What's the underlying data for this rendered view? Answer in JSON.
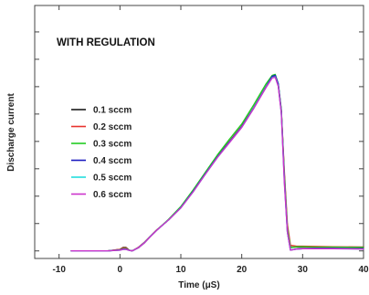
{
  "chart_data": {
    "type": "line",
    "title": "",
    "annotation": "WITH REGULATION",
    "xlabel": "Time (μS)",
    "ylabel": "Discharge current",
    "xlim": [
      -14,
      40
    ],
    "ylim": [
      -0.04,
      1.3
    ],
    "x_ticks": [
      -10,
      0,
      10,
      20,
      30,
      40
    ],
    "x_tick_labels": [
      "-10",
      "0",
      "10",
      "20",
      "30",
      "40"
    ],
    "y_ticks": [
      0,
      0.145,
      0.29,
      0.435,
      0.58,
      0.725,
      0.87,
      1.015,
      1.16
    ],
    "grid": false,
    "legend_position": "left",
    "series": [
      {
        "name": "0.1 sccm",
        "color": "#1a1a1a",
        "x": [
          -8,
          -2,
          0,
          0.5,
          1,
          1.5,
          2,
          3,
          4,
          5,
          6,
          8,
          10,
          12,
          14,
          16,
          18,
          20,
          22,
          24,
          25,
          25.5,
          26,
          26.5,
          27,
          27.5,
          28,
          29,
          30,
          32,
          35,
          40
        ],
        "y": [
          0,
          0,
          0.008,
          0.018,
          0.018,
          0.004,
          0,
          0.018,
          0.045,
          0.078,
          0.11,
          0.165,
          0.23,
          0.315,
          0.41,
          0.5,
          0.58,
          0.66,
          0.76,
          0.87,
          0.925,
          0.93,
          0.88,
          0.74,
          0.4,
          0.12,
          0.02,
          0.02,
          0.02,
          0.02,
          0.02,
          0.02
        ]
      },
      {
        "name": "0.2 sccm",
        "color": "#e8322d",
        "x": [
          -8,
          -2,
          0,
          0.5,
          1,
          1.5,
          2,
          3,
          4,
          5,
          6,
          8,
          10,
          12,
          14,
          16,
          18,
          20,
          22,
          24,
          25,
          25.5,
          26,
          26.5,
          27,
          27.5,
          28,
          29,
          30,
          32,
          35,
          40
        ],
        "y": [
          0,
          0,
          0.008,
          0.016,
          0.016,
          0.004,
          0,
          0.018,
          0.045,
          0.078,
          0.11,
          0.165,
          0.23,
          0.315,
          0.41,
          0.5,
          0.58,
          0.66,
          0.76,
          0.87,
          0.92,
          0.925,
          0.875,
          0.74,
          0.42,
          0.14,
          0.03,
          0.025,
          0.025,
          0.024,
          0.022,
          0.02
        ]
      },
      {
        "name": "0.3 sccm",
        "color": "#22cc22",
        "x": [
          -8,
          -2,
          0,
          0.5,
          1,
          1.5,
          2,
          3,
          4,
          5,
          6,
          8,
          10,
          12,
          14,
          16,
          18,
          20,
          22,
          24,
          25,
          25.5,
          26,
          26.5,
          27,
          27.5,
          28,
          29,
          30,
          32,
          35,
          40
        ],
        "y": [
          0,
          0,
          0.006,
          0.012,
          0.012,
          0.004,
          0,
          0.016,
          0.042,
          0.076,
          0.108,
          0.168,
          0.235,
          0.322,
          0.415,
          0.508,
          0.592,
          0.672,
          0.775,
          0.885,
          0.93,
          0.935,
          0.885,
          0.75,
          0.4,
          0.12,
          0.018,
          0.022,
          0.022,
          0.02,
          0.02,
          0.018
        ]
      },
      {
        "name": "0.4 sccm",
        "color": "#1c1cc0",
        "x": [
          -8,
          -2,
          0,
          0.5,
          1,
          1.5,
          2,
          3,
          4,
          5,
          6,
          8,
          10,
          12,
          14,
          16,
          18,
          20,
          22,
          24,
          25,
          25.5,
          26,
          26.5,
          27,
          27.5,
          28,
          29,
          30,
          32,
          35,
          40
        ],
        "y": [
          0,
          0,
          0.005,
          0.01,
          0.01,
          0.003,
          0,
          0.016,
          0.043,
          0.077,
          0.108,
          0.165,
          0.23,
          0.315,
          0.408,
          0.498,
          0.578,
          0.658,
          0.76,
          0.87,
          0.925,
          0.93,
          0.885,
          0.74,
          0.38,
          0.1,
          0.005,
          0.01,
          0.012,
          0.014,
          0.014,
          0.012
        ]
      },
      {
        "name": "0.5 sccm",
        "color": "#22dddd",
        "x": [
          -8,
          -2,
          0,
          0.5,
          1,
          1.5,
          2,
          3,
          4,
          5,
          6,
          8,
          10,
          12,
          14,
          16,
          18,
          20,
          22,
          24,
          25,
          25.5,
          26,
          26.5,
          27,
          27.5,
          28,
          29,
          30,
          32,
          35,
          40
        ],
        "y": [
          0,
          0,
          0.004,
          0.008,
          0.008,
          0.003,
          0,
          0.016,
          0.043,
          0.077,
          0.108,
          0.165,
          0.228,
          0.312,
          0.405,
          0.495,
          0.575,
          0.655,
          0.758,
          0.868,
          0.918,
          0.922,
          0.875,
          0.73,
          0.37,
          0.1,
          0.004,
          0.01,
          0.012,
          0.012,
          0.012,
          0.01
        ]
      },
      {
        "name": "0.6 sccm",
        "color": "#cc33cc",
        "x": [
          -8,
          -2,
          0,
          0.5,
          1,
          1.5,
          2,
          3,
          4,
          5,
          6,
          8,
          10,
          12,
          14,
          16,
          18,
          20,
          22,
          24,
          25,
          25.5,
          26,
          26.5,
          27,
          27.5,
          28,
          29,
          30,
          32,
          35,
          40
        ],
        "y": [
          0,
          0,
          0.004,
          0.008,
          0.008,
          0.003,
          0,
          0.016,
          0.042,
          0.076,
          0.108,
          0.165,
          0.228,
          0.312,
          0.405,
          0.495,
          0.574,
          0.654,
          0.756,
          0.866,
          0.916,
          0.92,
          0.872,
          0.73,
          0.36,
          0.1,
          0.004,
          0.01,
          0.012,
          0.012,
          0.012,
          0.01
        ]
      }
    ]
  }
}
